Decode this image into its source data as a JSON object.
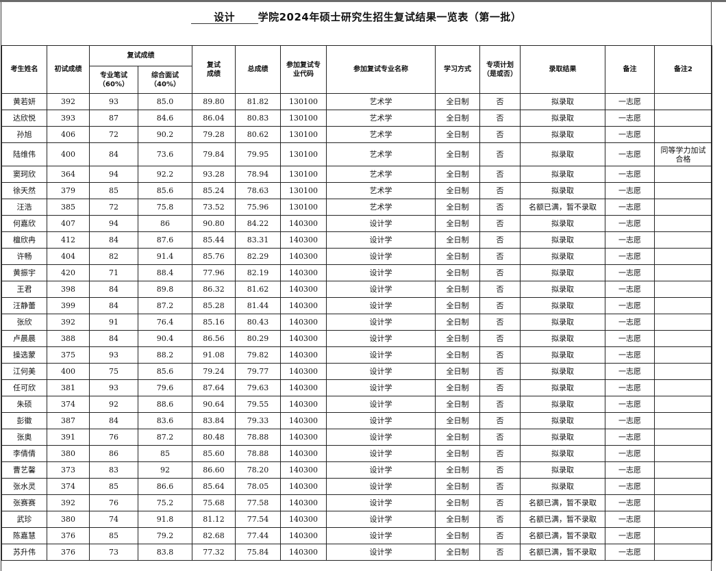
{
  "title": {
    "blank": "设计",
    "text": "学院2024年硕士研究生招生复试结果一览表（第一批）"
  },
  "headers": {
    "name": "考生姓名",
    "prelim": "初试成绩",
    "retest_group": "复试成绩",
    "written": "专业笔试\n（60%）",
    "interview": "综合面试\n（40%）",
    "retest": "复试\n成绩",
    "total": "总成绩",
    "code": "参加复试专\n业代码",
    "major": "参加复试专业名称",
    "mode": "学习方式",
    "special": "专项计划\n（是或否）",
    "result": "录取结果",
    "remark": "备注",
    "remark2": "备注2"
  },
  "rows": [
    [
      "黄若妍",
      "392",
      "93",
      "85.0",
      "89.80",
      "81.82",
      "130100",
      "艺术学",
      "全日制",
      "否",
      "拟录取",
      "一志愿",
      ""
    ],
    [
      "达欣悦",
      "393",
      "87",
      "84.6",
      "86.04",
      "80.83",
      "130100",
      "艺术学",
      "全日制",
      "否",
      "拟录取",
      "一志愿",
      ""
    ],
    [
      "孙旭",
      "406",
      "72",
      "90.2",
      "79.28",
      "80.62",
      "130100",
      "艺术学",
      "全日制",
      "否",
      "拟录取",
      "一志愿",
      ""
    ],
    [
      "陆维伟",
      "400",
      "84",
      "73.6",
      "79.84",
      "79.95",
      "130100",
      "艺术学",
      "全日制",
      "否",
      "拟录取",
      "一志愿",
      "同等学力加试合格"
    ],
    [
      "窦珂欣",
      "364",
      "94",
      "92.2",
      "93.28",
      "78.94",
      "130100",
      "艺术学",
      "全日制",
      "否",
      "拟录取",
      "一志愿",
      ""
    ],
    [
      "徐天然",
      "379",
      "85",
      "85.6",
      "85.24",
      "78.63",
      "130100",
      "艺术学",
      "全日制",
      "否",
      "拟录取",
      "一志愿",
      ""
    ],
    [
      "汪浩",
      "385",
      "72",
      "75.8",
      "73.52",
      "75.96",
      "130100",
      "艺术学",
      "全日制",
      "否",
      "名额已满，暂不录取",
      "一志愿",
      ""
    ],
    [
      "何嘉欣",
      "407",
      "94",
      "86",
      "90.80",
      "84.22",
      "140300",
      "设计学",
      "全日制",
      "否",
      "拟录取",
      "一志愿",
      ""
    ],
    [
      "檀欣冉",
      "412",
      "84",
      "87.6",
      "85.44",
      "83.31",
      "140300",
      "设计学",
      "全日制",
      "否",
      "拟录取",
      "一志愿",
      ""
    ],
    [
      "许畅",
      "404",
      "82",
      "91.4",
      "85.76",
      "82.29",
      "140300",
      "设计学",
      "全日制",
      "否",
      "拟录取",
      "一志愿",
      ""
    ],
    [
      "黄振宇",
      "420",
      "71",
      "88.4",
      "77.96",
      "82.19",
      "140300",
      "设计学",
      "全日制",
      "否",
      "拟录取",
      "一志愿",
      ""
    ],
    [
      "王君",
      "398",
      "84",
      "89.8",
      "86.32",
      "81.62",
      "140300",
      "设计学",
      "全日制",
      "否",
      "拟录取",
      "一志愿",
      ""
    ],
    [
      "汪静蕾",
      "399",
      "84",
      "87.2",
      "85.28",
      "81.44",
      "140300",
      "设计学",
      "全日制",
      "否",
      "拟录取",
      "一志愿",
      ""
    ],
    [
      "张欣",
      "392",
      "91",
      "76.4",
      "85.16",
      "80.43",
      "140300",
      "设计学",
      "全日制",
      "否",
      "拟录取",
      "一志愿",
      ""
    ],
    [
      "卢晨晨",
      "388",
      "84",
      "90.4",
      "86.56",
      "80.29",
      "140300",
      "设计学",
      "全日制",
      "否",
      "拟录取",
      "一志愿",
      ""
    ],
    [
      "操选蒙",
      "375",
      "93",
      "88.2",
      "91.08",
      "79.82",
      "140300",
      "设计学",
      "全日制",
      "否",
      "拟录取",
      "一志愿",
      ""
    ],
    [
      "江何美",
      "400",
      "75",
      "85.6",
      "79.24",
      "79.77",
      "140300",
      "设计学",
      "全日制",
      "否",
      "拟录取",
      "一志愿",
      ""
    ],
    [
      "任可欣",
      "381",
      "93",
      "79.6",
      "87.64",
      "79.63",
      "140300",
      "设计学",
      "全日制",
      "否",
      "拟录取",
      "一志愿",
      ""
    ],
    [
      "朱硕",
      "374",
      "92",
      "88.6",
      "90.64",
      "79.55",
      "140300",
      "设计学",
      "全日制",
      "否",
      "拟录取",
      "一志愿",
      ""
    ],
    [
      "彭徽",
      "387",
      "84",
      "83.6",
      "83.84",
      "79.33",
      "140300",
      "设计学",
      "全日制",
      "否",
      "拟录取",
      "一志愿",
      ""
    ],
    [
      "张奥",
      "391",
      "76",
      "87.2",
      "80.48",
      "78.88",
      "140300",
      "设计学",
      "全日制",
      "否",
      "拟录取",
      "一志愿",
      ""
    ],
    [
      "李倩倩",
      "380",
      "86",
      "85",
      "85.60",
      "78.88",
      "140300",
      "设计学",
      "全日制",
      "否",
      "拟录取",
      "一志愿",
      ""
    ],
    [
      "曹艺馨",
      "373",
      "83",
      "92",
      "86.60",
      "78.20",
      "140300",
      "设计学",
      "全日制",
      "否",
      "拟录取",
      "一志愿",
      ""
    ],
    [
      "张水灵",
      "374",
      "85",
      "86.6",
      "85.64",
      "78.05",
      "140300",
      "设计学",
      "全日制",
      "否",
      "拟录取",
      "一志愿",
      ""
    ],
    [
      "张赛赛",
      "392",
      "76",
      "75.2",
      "75.68",
      "77.58",
      "140300",
      "设计学",
      "全日制",
      "否",
      "名额已满，暂不录取",
      "一志愿",
      ""
    ],
    [
      "武珍",
      "380",
      "74",
      "91.8",
      "81.12",
      "77.54",
      "140300",
      "设计学",
      "全日制",
      "否",
      "名额已满，暂不录取",
      "一志愿",
      ""
    ],
    [
      "陈嘉慧",
      "376",
      "85",
      "79.2",
      "82.68",
      "77.44",
      "140300",
      "设计学",
      "全日制",
      "否",
      "名额已满，暂不录取",
      "一志愿",
      ""
    ],
    [
      "苏升伟",
      "376",
      "73",
      "83.8",
      "77.32",
      "75.84",
      "140300",
      "设计学",
      "全日制",
      "否",
      "名额已满，暂不录取",
      "一志愿",
      ""
    ]
  ]
}
